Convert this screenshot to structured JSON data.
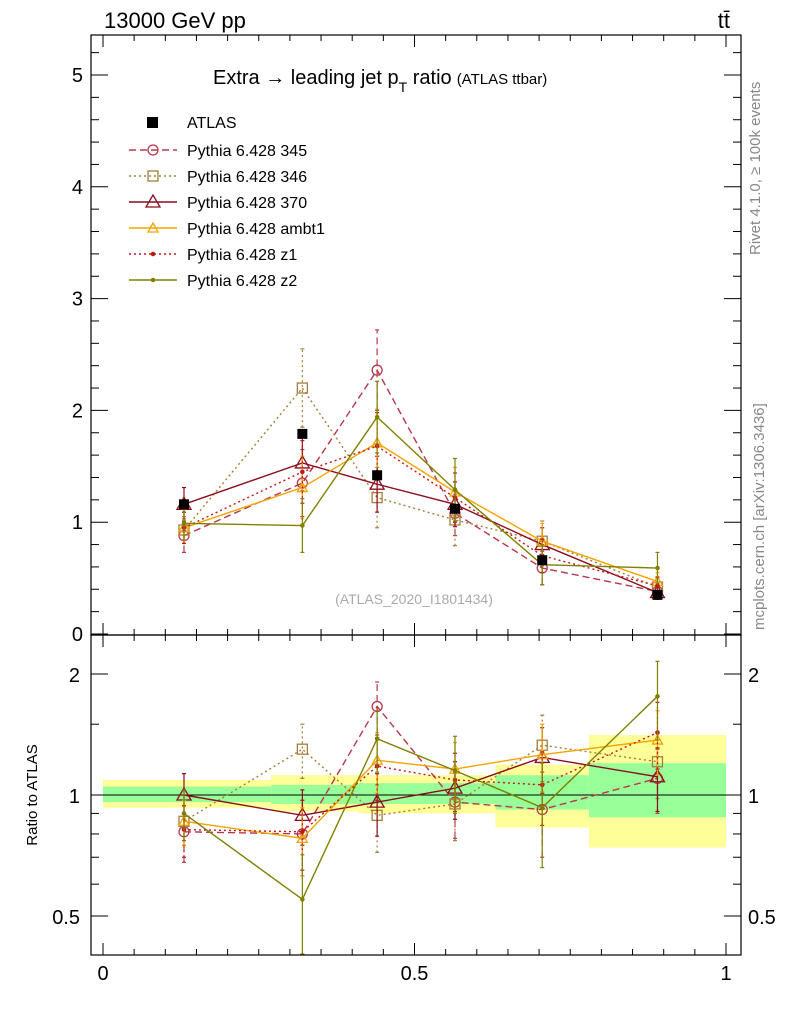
{
  "header": {
    "left": "13000 GeV pp",
    "right": "tt̄"
  },
  "side_labels": {
    "rivet": "Rivet 4.1.0, ≥ 100k events",
    "mcplots": "mcplots.cern.ch [arXiv:1306.3436]"
  },
  "chart_data": [
    {
      "type": "line",
      "title_main": "Extra → leading jet p",
      "title_sub": "T",
      "title_tail": " ratio",
      "title_small": "(ATLAS ttbar)",
      "watermark": "(ATLAS_2020_I1801434)",
      "xlabel": "",
      "ylabel": "",
      "xlim": [
        0,
        1
      ],
      "ylim": [
        0,
        5.35
      ],
      "y_ticks": [
        "0",
        "1",
        "2",
        "3",
        "4",
        "5"
      ],
      "y_tick_values": [
        0,
        1,
        2,
        3,
        4,
        5
      ],
      "x": [
        0.13,
        0.32,
        0.44,
        0.565,
        0.705,
        0.89
      ],
      "data": {
        "name": "ATLAS",
        "values": [
          1.16,
          1.79,
          1.42,
          1.12,
          0.66,
          0.35
        ],
        "err": [
          0.03,
          0.03,
          0.05,
          0.03,
          0.03,
          0.02
        ]
      },
      "series": [
        {
          "name": "Pythia 6.428 345",
          "color": "#b5384a",
          "dash": "7,4",
          "marker": "circle",
          "values": [
            0.88,
            1.35,
            2.36,
            1.08,
            0.59,
            0.38
          ],
          "err": [
            0.15,
            0.3,
            0.36,
            0.2,
            0.15,
            0.07
          ]
        },
        {
          "name": "Pythia 6.428 346",
          "color": "#a57e39",
          "dash": "2,3",
          "marker": "square",
          "values": [
            0.93,
            2.2,
            1.22,
            1.02,
            0.83,
            0.42
          ],
          "err": [
            0.12,
            0.35,
            0.27,
            0.23,
            0.18,
            0.08
          ]
        },
        {
          "name": "Pythia 6.428 370",
          "color": "#8b0e1f",
          "dash": "",
          "marker": "triangle",
          "values": [
            1.16,
            1.53,
            1.34,
            1.16,
            0.8,
            0.37
          ],
          "err": [
            0.15,
            0.25,
            0.25,
            0.2,
            0.15,
            0.06
          ]
        },
        {
          "name": "Pythia 6.428 ambt1",
          "color": "#f4a300",
          "dash": "",
          "marker": "triangle-small",
          "values": [
            0.95,
            1.31,
            1.71,
            1.27,
            0.83,
            0.47
          ],
          "err": [
            0.14,
            0.28,
            0.3,
            0.22,
            0.16,
            0.08
          ]
        },
        {
          "name": "Pythia 6.428 z1",
          "color": "#c01818",
          "dash": "2,3",
          "marker": "dot",
          "values": [
            0.95,
            1.45,
            1.68,
            1.22,
            0.7,
            0.43
          ],
          "err": [
            0.14,
            0.28,
            0.3,
            0.22,
            0.15,
            0.08
          ]
        },
        {
          "name": "Pythia 6.428 z2",
          "color": "#808000",
          "dash": "",
          "marker": "dot",
          "values": [
            0.99,
            0.97,
            1.94,
            1.29,
            0.62,
            0.59
          ],
          "err": [
            0.15,
            0.24,
            0.32,
            0.28,
            0.18,
            0.14
          ]
        }
      ]
    },
    {
      "type": "line",
      "title": "Ratio to ATLAS",
      "ylabel": "Ratio to ATLAS",
      "xlabel": "",
      "xlim": [
        0,
        1
      ],
      "ylim": [
        0.42,
        2.35
      ],
      "y_ticks": [
        "0.5",
        "1",
        "2"
      ],
      "y_tick_values": [
        0.5,
        1,
        2
      ],
      "x_ticks": [
        "0",
        "0.5",
        "1"
      ],
      "x_tick_values": [
        0,
        0.5,
        1
      ],
      "bands": [
        {
          "x0": 0.0,
          "x1": 0.27,
          "yellow": [
            0.93,
            1.09
          ],
          "green": [
            0.96,
            1.05
          ]
        },
        {
          "x0": 0.27,
          "x1": 0.41,
          "yellow": [
            0.91,
            1.12
          ],
          "green": [
            0.95,
            1.06
          ]
        },
        {
          "x0": 0.41,
          "x1": 0.63,
          "yellow": [
            0.9,
            1.12
          ],
          "green": [
            0.95,
            1.07
          ]
        },
        {
          "x0": 0.63,
          "x1": 0.78,
          "yellow": [
            0.83,
            1.19
          ],
          "green": [
            0.92,
            1.12
          ]
        },
        {
          "x0": 0.78,
          "x1": 1.0,
          "yellow": [
            0.74,
            1.41
          ],
          "green": [
            0.88,
            1.2
          ]
        }
      ],
      "series_ratio": [
        {
          "name": "Pythia 6.428 345",
          "values": [
            0.81,
            0.8,
            1.66,
            0.96,
            0.92,
            1.1
          ],
          "err": [
            0.13,
            0.17,
            0.25,
            0.18,
            0.22,
            0.2
          ]
        },
        {
          "name": "Pythia 6.428 346",
          "values": [
            0.86,
            1.3,
            0.89,
            0.95,
            1.33,
            1.21
          ],
          "err": [
            0.11,
            0.2,
            0.17,
            0.18,
            0.25,
            0.23
          ]
        },
        {
          "name": "Pythia 6.428 370",
          "values": [
            1.0,
            0.89,
            0.96,
            1.04,
            1.24,
            1.11
          ],
          "err": [
            0.13,
            0.14,
            0.17,
            0.17,
            0.23,
            0.2
          ]
        },
        {
          "name": "Pythia 6.428 ambt1",
          "values": [
            0.86,
            0.78,
            1.22,
            1.16,
            1.26,
            1.37
          ],
          "err": [
            0.11,
            0.15,
            0.21,
            0.19,
            0.24,
            0.25
          ]
        },
        {
          "name": "Pythia 6.428 z1",
          "values": [
            0.82,
            0.81,
            1.18,
            1.09,
            1.06,
            1.43
          ],
          "err": [
            0.12,
            0.16,
            0.21,
            0.18,
            0.22,
            0.27
          ]
        },
        {
          "name": "Pythia 6.428 z2",
          "values": [
            0.9,
            0.55,
            1.38,
            1.15,
            0.93,
            1.76
          ],
          "err": [
            0.13,
            0.16,
            0.24,
            0.25,
            0.27,
            0.39
          ]
        }
      ]
    }
  ]
}
